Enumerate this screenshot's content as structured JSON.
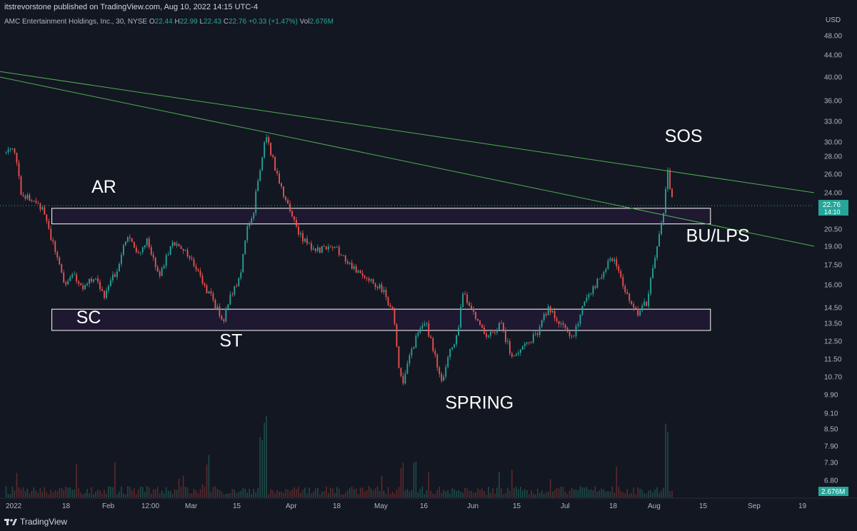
{
  "header": {
    "published": "itstrevorstone published on TradingView.com, Aug 10, 2022 14:15 UTC-4",
    "symbol": "AMC Entertainment Holdings, Inc., 30, NYSE",
    "o_label": "O",
    "o_value": "22.44",
    "h_label": "H",
    "h_value": "22.99",
    "l_label": "L",
    "l_value": "22.43",
    "c_label": "C",
    "c_value": "22.76",
    "change": "+0.33 (+1.47%)",
    "vol_label": "Vol",
    "vol_value": "2.676M"
  },
  "footer": {
    "brand": "TradingView"
  },
  "colors": {
    "background": "#131722",
    "up": "#26a69a",
    "down": "#ef5350",
    "trendline": "#4caf50",
    "zone_fill": "#1e1830"
  },
  "chart_data": {
    "type": "candlestick",
    "currency": "USD",
    "y_ticks": [
      "48.00",
      "44.00",
      "40.00",
      "36.00",
      "33.00",
      "30.00",
      "28.00",
      "26.00",
      "24.00",
      "20.50",
      "19.00",
      "17.50",
      "16.00",
      "14.50",
      "13.50",
      "12.50",
      "11.50",
      "10.70",
      "9.90",
      "9.10",
      "8.50",
      "7.90",
      "7.30",
      "6.80"
    ],
    "x_ticks": [
      "2022",
      "18",
      "Feb",
      "12:00",
      "Mar",
      "15",
      "Apr",
      "18",
      "May",
      "16",
      "Jun",
      "15",
      "Jul",
      "18",
      "Aug",
      "15",
      "Sep",
      "19"
    ],
    "last_price": "22.76",
    "countdown": "14:10",
    "volume_label": "2.676M",
    "price_path": [
      [
        "2022-01-03",
        28.5
      ],
      [
        "2022-01-05",
        29.8
      ],
      [
        "2022-01-08",
        24.0
      ],
      [
        "2022-01-12",
        23.0
      ],
      [
        "2022-01-15",
        22.7
      ],
      [
        "2022-01-18",
        19.5
      ],
      [
        "2022-01-22",
        16.0
      ],
      [
        "2022-01-25",
        17.0
      ],
      [
        "2022-01-28",
        15.5
      ],
      [
        "2022-02-01",
        16.8
      ],
      [
        "2022-02-04",
        15.2
      ],
      [
        "2022-02-08",
        17.0
      ],
      [
        "2022-02-12",
        20.0
      ],
      [
        "2022-02-15",
        18.2
      ],
      [
        "2022-02-18",
        19.5
      ],
      [
        "2022-02-22",
        16.5
      ],
      [
        "2022-02-26",
        19.0
      ],
      [
        "2022-03-01",
        19.2
      ],
      [
        "2022-03-05",
        17.6
      ],
      [
        "2022-03-09",
        16.0
      ],
      [
        "2022-03-13",
        14.5
      ],
      [
        "2022-03-15",
        13.6
      ],
      [
        "2022-03-18",
        15.5
      ],
      [
        "2022-03-21",
        16.8
      ],
      [
        "2022-03-23",
        20.5
      ],
      [
        "2022-03-25",
        22.0
      ],
      [
        "2022-03-28",
        28.0
      ],
      [
        "2022-03-29",
        31.0
      ],
      [
        "2022-04-01",
        27.0
      ],
      [
        "2022-04-05",
        23.0
      ],
      [
        "2022-04-09",
        20.0
      ],
      [
        "2022-04-13",
        19.0
      ],
      [
        "2022-04-17",
        18.7
      ],
      [
        "2022-04-21",
        18.8
      ],
      [
        "2022-04-25",
        17.8
      ],
      [
        "2022-04-29",
        16.8
      ],
      [
        "2022-05-03",
        16.2
      ],
      [
        "2022-05-07",
        15.5
      ],
      [
        "2022-05-10",
        14.0
      ],
      [
        "2022-05-12",
        11.0
      ],
      [
        "2022-05-13",
        10.2
      ],
      [
        "2022-05-16",
        12.0
      ],
      [
        "2022-05-20",
        13.8
      ],
      [
        "2022-05-24",
        11.5
      ],
      [
        "2022-05-26",
        10.6
      ],
      [
        "2022-05-31",
        13.0
      ],
      [
        "2022-06-02",
        15.5
      ],
      [
        "2022-06-06",
        14.0
      ],
      [
        "2022-06-10",
        12.6
      ],
      [
        "2022-06-14",
        13.6
      ],
      [
        "2022-06-18",
        11.5
      ],
      [
        "2022-06-22",
        12.4
      ],
      [
        "2022-06-26",
        12.8
      ],
      [
        "2022-06-30",
        14.6
      ],
      [
        "2022-07-04",
        13.4
      ],
      [
        "2022-07-08",
        12.6
      ],
      [
        "2022-07-12",
        15.2
      ],
      [
        "2022-07-16",
        16.2
      ],
      [
        "2022-07-20",
        18.0
      ],
      [
        "2022-07-22",
        17.5
      ],
      [
        "2022-07-26",
        15.0
      ],
      [
        "2022-07-29",
        14.2
      ],
      [
        "2022-08-01",
        14.8
      ],
      [
        "2022-08-03",
        17.0
      ],
      [
        "2022-08-05",
        19.5
      ],
      [
        "2022-08-07",
        23.0
      ],
      [
        "2022-08-08",
        26.5
      ],
      [
        "2022-08-09",
        23.6
      ],
      [
        "2022-08-10",
        22.76
      ]
    ],
    "trendlines": [
      {
        "from": [
          "2022-01-01",
          41.0
        ],
        "to": [
          "2022-09-25",
          24.0
        ]
      },
      {
        "from": [
          "2022-01-01",
          40.0
        ],
        "to": [
          "2022-09-25",
          19.0
        ]
      }
    ],
    "zones": [
      {
        "from": "2022-01-18",
        "to": "2022-08-22",
        "low": 21.0,
        "high": 22.5
      },
      {
        "from": "2022-01-18",
        "to": "2022-08-22",
        "low": 13.1,
        "high": 14.4
      }
    ],
    "annotations": [
      {
        "text": "AR",
        "date": "2022-01-31",
        "price": 24.0
      },
      {
        "text": "SC",
        "date": "2022-01-26",
        "price": 13.5
      },
      {
        "text": "ST",
        "date": "2022-03-14",
        "price": 12.2
      },
      {
        "text": "SPRING",
        "date": "2022-05-27",
        "price": 9.3
      },
      {
        "text": "SOS",
        "date": "2022-08-07",
        "price": 30.0
      },
      {
        "text": "BU/LPS",
        "date": "2022-08-14",
        "price": 19.4
      }
    ]
  }
}
